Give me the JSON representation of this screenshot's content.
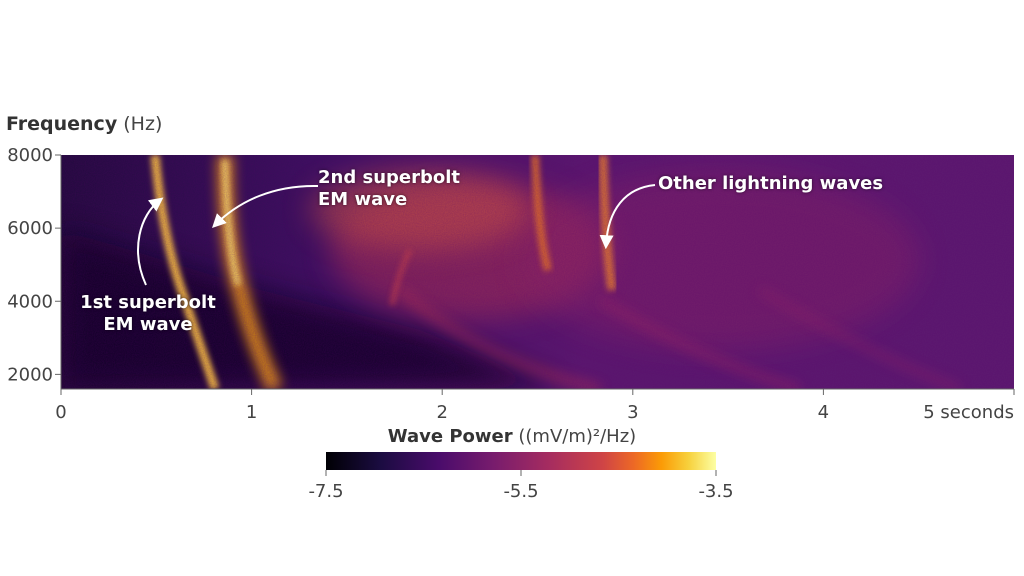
{
  "chart_data": {
    "type": "heatmap",
    "title": "",
    "ylabel": "Frequency",
    "ylabel_unit": "(Hz)",
    "xlabel": "",
    "xlim": [
      0,
      5
    ],
    "ylim": [
      1600,
      8000
    ],
    "x_ticks": [
      "0",
      "1",
      "2",
      "3",
      "4",
      "5 seconds"
    ],
    "x_tick_values": [
      0,
      1,
      2,
      3,
      4,
      5
    ],
    "y_ticks": [
      "2000",
      "4000",
      "6000",
      "8000"
    ],
    "y_tick_values": [
      2000,
      4000,
      6000,
      8000
    ],
    "colorbar": {
      "label": "Wave Power",
      "unit": "((mV/m)²/Hz)",
      "range": [
        -7.5,
        -3.5
      ],
      "ticks": [
        "-7.5",
        "-5.5",
        "-3.5"
      ],
      "tick_values": [
        -7.5,
        -5.5,
        -3.5
      ],
      "colormap": "inferno"
    },
    "annotations": [
      {
        "text_lines": [
          "1st superbolt",
          "EM wave"
        ],
        "target": [
          0.52,
          6800
        ]
      },
      {
        "text_lines": [
          "2nd superbolt",
          "EM wave"
        ],
        "target": [
          0.8,
          6000
        ]
      },
      {
        "text_lines": [
          "Other lightning waves"
        ],
        "target": [
          2.87,
          5400
        ]
      }
    ],
    "features": [
      {
        "name": "1st superbolt EM wave",
        "x_at_8000": 0.5,
        "x_at_1600": 0.75
      },
      {
        "name": "2nd superbolt EM wave",
        "x_at_8000": 0.85,
        "x_at_1600": 1.1
      }
    ]
  },
  "colors": {
    "background": "#2a0f4a",
    "axis": "#555555",
    "annotation_text": "#ffffff"
  }
}
